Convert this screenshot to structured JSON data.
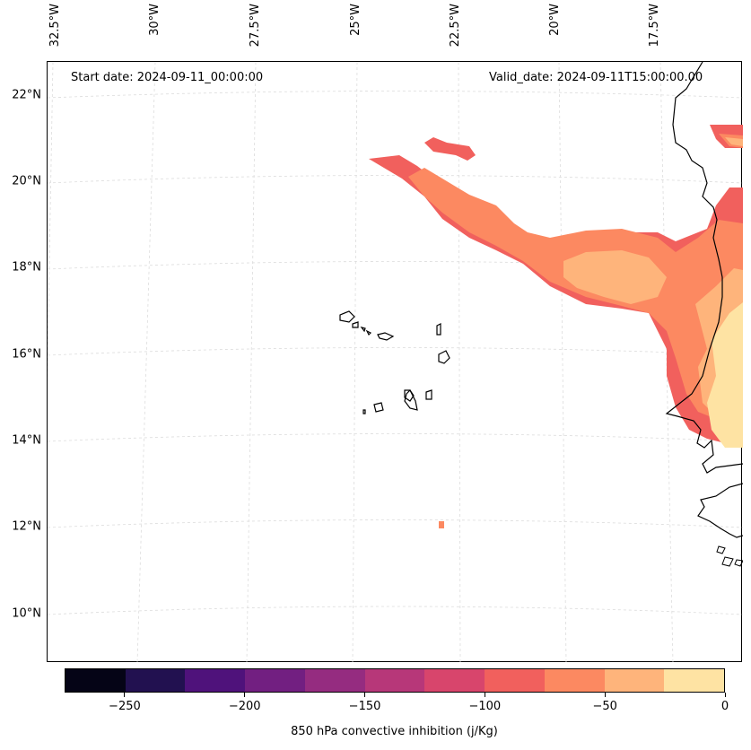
{
  "map": {
    "start_date": "Start date: 2024-09-11_00:00:00",
    "valid_date": "Valid_date: 2024-09-11T15:00:00.00",
    "lat_labels": [
      "22°N",
      "20°N",
      "18°N",
      "16°N",
      "14°N",
      "12°N",
      "10°N"
    ],
    "lon_labels": [
      "32.5°W",
      "30°W",
      "27.5°W",
      "25°W",
      "22.5°W",
      "20°W",
      "17.5°W"
    ],
    "gridline_color": "#dcdcdc",
    "coastline_color": "#000000"
  },
  "colorbar": {
    "label": "850 hPa convective inhibition (j/Kg)",
    "colors": [
      "#050416",
      "#221150",
      "#4f127b",
      "#721f81",
      "#952c80",
      "#b73779",
      "#d8456c",
      "#f1605d",
      "#fc8961",
      "#feb47b",
      "#fee3a3"
    ],
    "ticks": [
      {
        "value": -250,
        "label": "−250"
      },
      {
        "value": -200,
        "label": "−200"
      },
      {
        "value": -150,
        "label": "−150"
      },
      {
        "value": -100,
        "label": "−100"
      },
      {
        "value": -50,
        "label": "−50"
      },
      {
        "value": 0,
        "label": "0"
      }
    ],
    "vmin": -275,
    "vmax": 0
  }
}
